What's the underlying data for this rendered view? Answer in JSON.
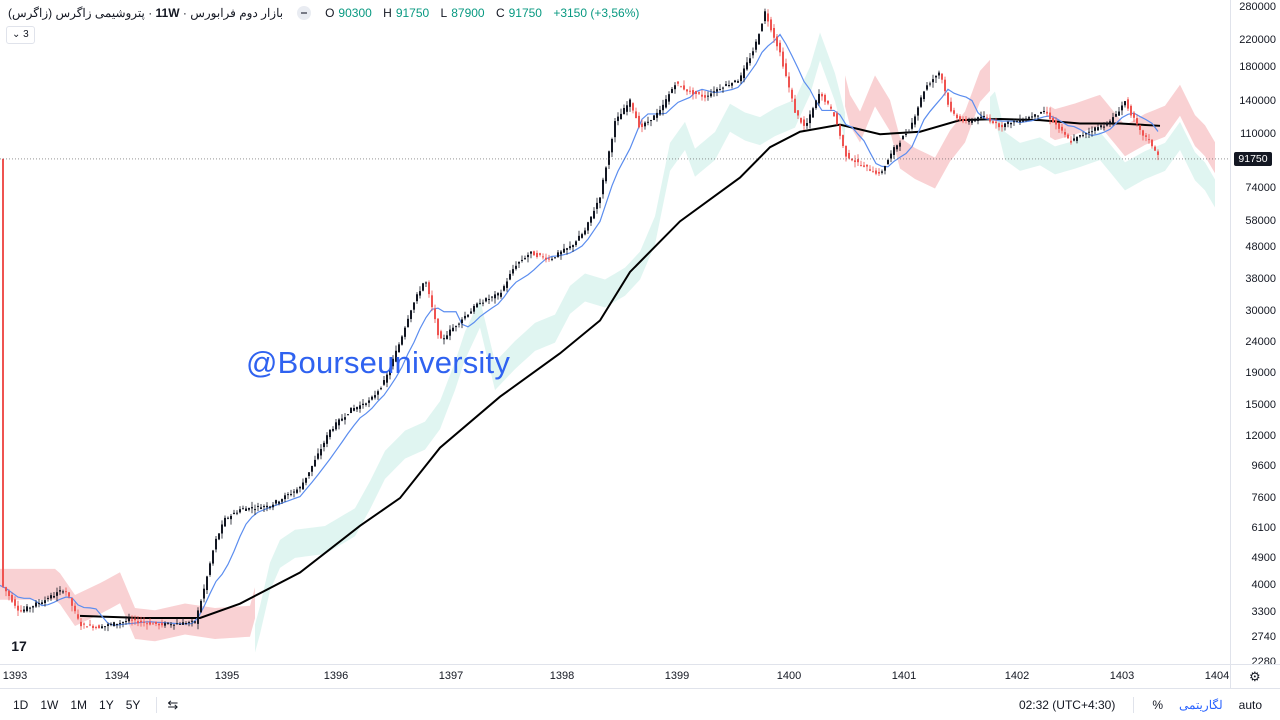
{
  "legend": {
    "title": "پتروشیمی زاگرس (زاگرس)",
    "interval": "11W",
    "exchange": "بازار دوم فرابورس",
    "open_label": "O",
    "open": "90300",
    "high_label": "H",
    "high": "91750",
    "low_label": "L",
    "low": "87900",
    "close_label": "C",
    "close": "91750",
    "change": "+3150 (+3,56%)",
    "collapse": "3"
  },
  "watermark": "@Bourseuniversity",
  "logo": "17",
  "last_price": "91750",
  "price_axis": {
    "scale": "log",
    "labels": [
      "280000",
      "220000",
      "180000",
      "140000",
      "110000",
      "91750",
      "74000",
      "58000",
      "48000",
      "38000",
      "30000",
      "24000",
      "19000",
      "15000",
      "12000",
      "9600",
      "7600",
      "6100",
      "4900",
      "4000",
      "3300",
      "2740",
      "2280"
    ]
  },
  "time_axis": {
    "labels": [
      "1393",
      "1394",
      "1395",
      "1396",
      "1397",
      "1398",
      "1399",
      "1400",
      "1401",
      "1402",
      "1403",
      "1404"
    ]
  },
  "bottom_bar": {
    "ranges": [
      "1D",
      "1W",
      "1M",
      "1Y",
      "5Y"
    ],
    "time": "02:32 (UTC+4:30)",
    "percent": "%",
    "log": "لگاریتمی",
    "auto": "auto"
  },
  "colors": {
    "up": "#26a69a",
    "down": "#ef5350",
    "candle_up": "#131722",
    "candle_down": "#ef5350",
    "ma": "#000000",
    "conversion": "#5b8def",
    "cloud_bull": "#d6f1ec",
    "cloud_bear": "#f8c9cb",
    "watermark": "#2f62f0"
  },
  "chart_data": {
    "type": "line",
    "title": "",
    "scale": "log",
    "x": [
      "1393",
      "1394",
      "1395",
      "1396",
      "1397",
      "1398",
      "1399",
      "1400",
      "1401",
      "1402",
      "1403"
    ],
    "series": [
      {
        "values": [
          3800,
          3100,
          3300,
          11000,
          27000,
          50000,
          160000,
          130000,
          100000,
          120000,
          110000
        ]
      }
    ],
    "last_close": 91750
  }
}
